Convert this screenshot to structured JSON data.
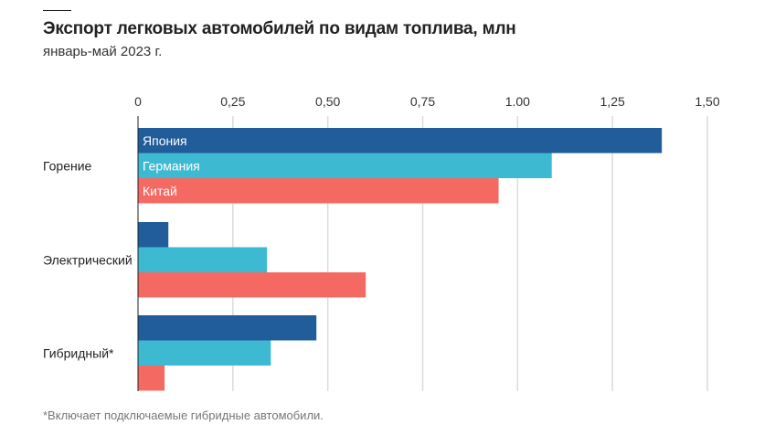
{
  "chart_data": {
    "type": "bar",
    "orientation": "horizontal",
    "title": "Экспорт легковых автомобилей по видам топлива, млн",
    "subtitle": "январь-май 2023 г.",
    "footnote": "*Включает подключаемые гибридные автомобили.",
    "categories": [
      "Горение",
      "Электрический",
      "Гибридный*"
    ],
    "series": [
      {
        "name": "Япония",
        "color": "#215d9a",
        "values": [
          1.38,
          0.08,
          0.47
        ]
      },
      {
        "name": "Германия",
        "color": "#3dbad1",
        "values": [
          1.09,
          0.34,
          0.35
        ]
      },
      {
        "name": "Китай",
        "color": "#f46a63",
        "values": [
          0.95,
          0.6,
          0.07
        ]
      }
    ],
    "xlim": [
      0,
      1.5
    ],
    "ticks": [
      0,
      0.25,
      0.5,
      0.75,
      1.0,
      1.25,
      1.5
    ],
    "tick_labels": [
      "0",
      "0,25",
      "0,50",
      "0,75",
      "1.00",
      "1,25",
      "1,50"
    ],
    "grid": true,
    "legend": "inside-first-group-bars"
  }
}
